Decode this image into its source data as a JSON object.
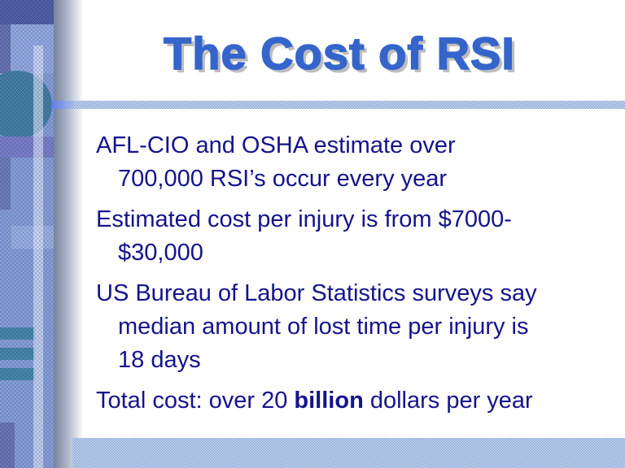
{
  "slide": {
    "title": "The Cost of RSI",
    "bullets": [
      {
        "lines": [
          "AFL-CIO and OSHA estimate over",
          "700,000 RSI’s occur every year"
        ]
      },
      {
        "lines": [
          "Estimated cost per injury is from $7000-",
          "$30,000"
        ]
      },
      {
        "lines": [
          "US Bureau of Labor Statistics surveys say",
          "median amount of lost time per injury is",
          "18 days"
        ]
      },
      {
        "pre": "Total cost: over 20 ",
        "bold": "billion",
        "post": " dollars per year"
      }
    ],
    "colors": {
      "title_blue": "#3565CB",
      "body_navy": "#14148C",
      "checker_blue": "#5583C8",
      "sidebar_base": "#7A95D6",
      "sidebar_teal": "#2E7397",
      "sidebar_purple": "#6D72C3"
    }
  }
}
